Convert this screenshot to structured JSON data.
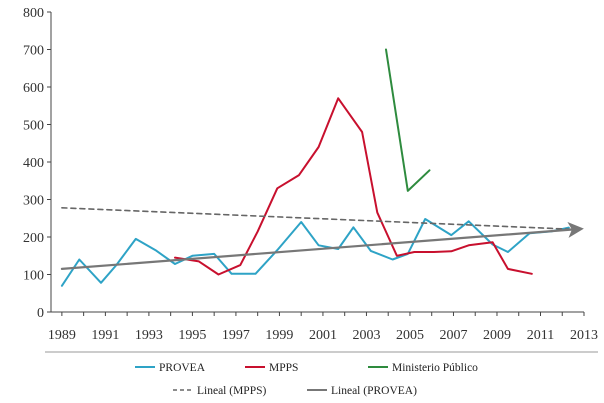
{
  "chart_data": {
    "type": "line",
    "title": "",
    "xlabel": "",
    "ylabel": "",
    "xlim": [
      1988.5,
      2013
    ],
    "ylim": [
      0,
      800
    ],
    "x_ticks": [
      1989,
      1991,
      1993,
      1995,
      1997,
      1999,
      2001,
      2003,
      2005,
      2007,
      2009,
      2011,
      2013
    ],
    "y_ticks": [
      0,
      100,
      200,
      300,
      400,
      500,
      600,
      700,
      800
    ],
    "grid": false,
    "legend_position": "bottom",
    "series": [
      {
        "name": "PROVEA",
        "color": "#2ea3c6",
        "style": "solid",
        "x": [
          1989,
          1989.8,
          1990.8,
          1991.5,
          1992.4,
          1993.3,
          1994.2,
          1995,
          1996,
          1996.8,
          1997.9,
          1998.9,
          2000,
          2000.8,
          2001.7,
          2002.4,
          2003.2,
          2004.2,
          2004.9,
          2005.7,
          2006.9,
          2007.7,
          2008.8,
          2009.5,
          2010.5,
          2011.5,
          2012.3
        ],
        "values": [
          70,
          140,
          78,
          125,
          195,
          165,
          128,
          150,
          155,
          102,
          102,
          165,
          240,
          178,
          168,
          226,
          163,
          140,
          155,
          248,
          205,
          242,
          180,
          160,
          210,
          215,
          225
        ]
      },
      {
        "name": "MPPS",
        "color": "#c8102e",
        "style": "solid",
        "x": [
          1994.2,
          1995.3,
          1996.2,
          1997.2,
          1998,
          1998.9,
          1999.9,
          2000.8,
          2001.7,
          2002.8,
          2003.5,
          2004.4,
          2005.2,
          2006.1,
          2006.9,
          2007.7,
          2008.8,
          2009.5,
          2010.6
        ],
        "values": [
          145,
          135,
          100,
          125,
          215,
          330,
          365,
          440,
          570,
          480,
          265,
          150,
          160,
          160,
          162,
          178,
          186,
          115,
          102
        ]
      },
      {
        "name": "Ministerio Público",
        "color": "#2e8b3e",
        "style": "solid",
        "x": [
          2003.9,
          2004.9,
          2005.9
        ],
        "values": [
          700,
          323,
          378
        ]
      },
      {
        "name": "Lineal (MPPS)",
        "color": "#666666",
        "style": "dashed",
        "x": [
          1989,
          2012.7
        ],
        "values": [
          278,
          220
        ]
      },
      {
        "name": "Lineal (PROVEA)",
        "color": "#777777",
        "style": "solid-arrow",
        "x": [
          1989,
          2012.7
        ],
        "values": [
          115,
          221
        ]
      }
    ],
    "legend_rows": [
      [
        "PROVEA",
        "MPPS",
        "Ministerio Público"
      ],
      [
        "Lineal (MPPS)",
        "Lineal (PROVEA)"
      ]
    ]
  }
}
